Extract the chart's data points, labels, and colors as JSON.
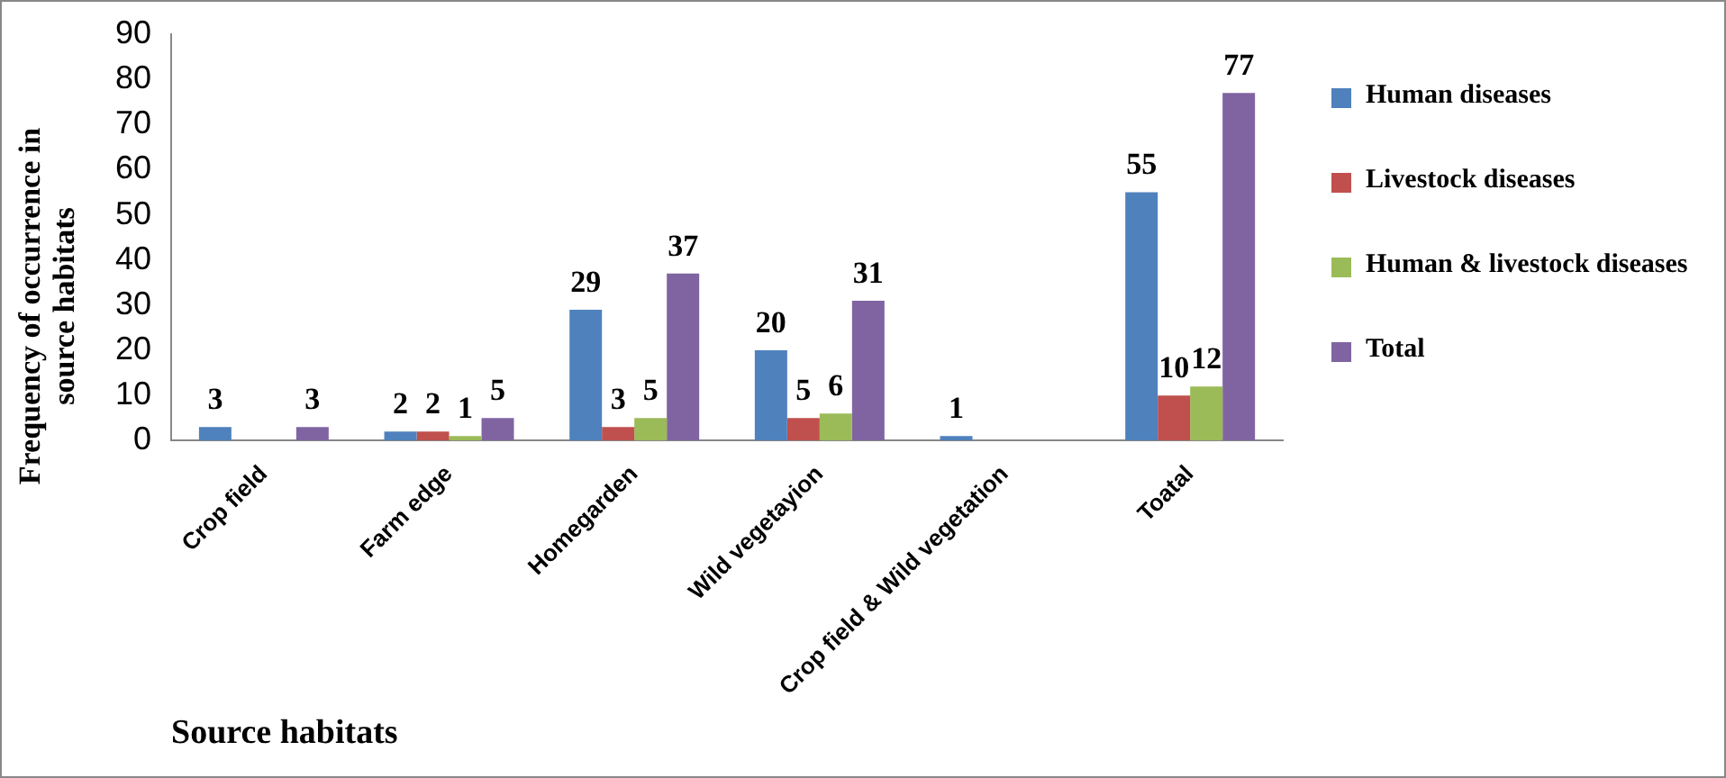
{
  "chart_data": {
    "type": "bar",
    "xlabel": "Source habitats",
    "ylabel": "Frequency of occurrence  in source habitats",
    "categories": [
      "Crop field",
      "Farm edge",
      "Homegarden",
      "Wild vegetayion",
      "Crop field & Wild vegetation",
      "Toatal"
    ],
    "series": [
      {
        "name": "Human diseases",
        "color": "#4f81bd",
        "values": [
          3,
          2,
          29,
          20,
          1,
          55
        ],
        "value_labels": [
          "3",
          "2",
          "29",
          "20",
          "1",
          "55"
        ]
      },
      {
        "name": "Livestock diseases",
        "color": "#c0504d",
        "values": [
          null,
          2,
          3,
          5,
          null,
          10
        ],
        "value_labels": [
          null,
          "2",
          "3",
          "5",
          null,
          "10"
        ]
      },
      {
        "name": "Human & livestock diseases",
        "color": "#9bbb59",
        "values": [
          null,
          1,
          5,
          6,
          null,
          12
        ],
        "value_labels": [
          null,
          "1",
          "5",
          "6",
          null,
          "12"
        ]
      },
      {
        "name": "Total",
        "color": "#8064a2",
        "values": [
          3,
          5,
          37,
          31,
          null,
          77
        ],
        "value_labels": [
          "3",
          "5",
          "37",
          "31",
          null,
          "77"
        ]
      }
    ],
    "ylim": [
      0,
      90
    ],
    "yticks": [
      0,
      10,
      20,
      30,
      40,
      50,
      60,
      70,
      80,
      90
    ],
    "grid": false,
    "legend": "right"
  }
}
